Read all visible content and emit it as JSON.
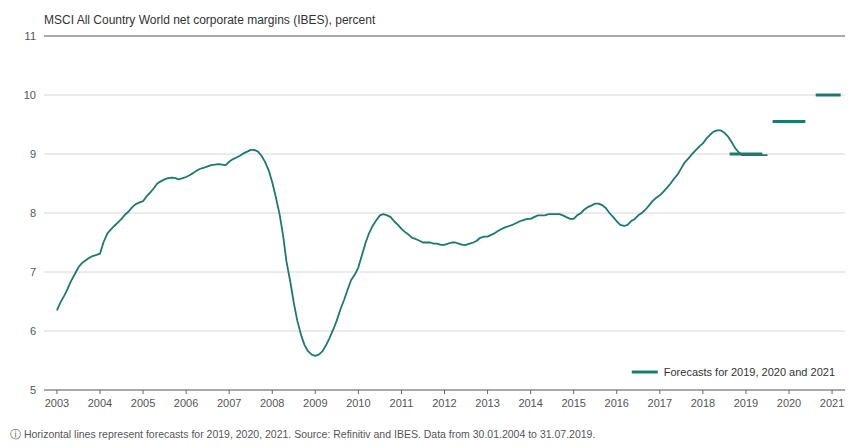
{
  "chart_data": {
    "type": "line",
    "title": "MSCI All Country World net corporate margins (IBES), percent",
    "footnote": "ⓘ  Horizontal lines represent forecasts for 2019, 2020, 2021. Source: Refinitiv and IBES. Data from 30.01.2004 to 31.07.2019.",
    "xlim": [
      2002.7,
      2021.3
    ],
    "xticks": [
      2003,
      2004,
      2005,
      2006,
      2007,
      2008,
      2009,
      2010,
      2011,
      2012,
      2013,
      2014,
      2015,
      2016,
      2017,
      2018,
      2019,
      2020,
      2021
    ],
    "ylim": [
      5,
      11
    ],
    "yticks": [
      5,
      6,
      7,
      8,
      9,
      10,
      11
    ],
    "grid": true,
    "legend": "lower right",
    "series": [
      {
        "type": "line",
        "color": "#1a7a6e",
        "x": [
          2003.0,
          2003.08,
          2003.17,
          2003.25,
          2003.33,
          2003.42,
          2003.5,
          2003.58,
          2003.67,
          2003.75,
          2003.83,
          2003.92,
          2004.0,
          2004.08,
          2004.17,
          2004.25,
          2004.33,
          2004.42,
          2004.5,
          2004.58,
          2004.67,
          2004.75,
          2004.83,
          2004.92,
          2005.0,
          2005.08,
          2005.17,
          2005.25,
          2005.33,
          2005.42,
          2005.5,
          2005.58,
          2005.67,
          2005.75,
          2005.83,
          2005.92,
          2006.0,
          2006.08,
          2006.17,
          2006.25,
          2006.33,
          2006.42,
          2006.5,
          2006.58,
          2006.67,
          2006.75,
          2006.83,
          2006.92,
          2007.0,
          2007.08,
          2007.17,
          2007.25,
          2007.33,
          2007.42,
          2007.5,
          2007.58,
          2007.67,
          2007.75,
          2007.83,
          2007.92,
          2008.0,
          2008.08,
          2008.17,
          2008.25,
          2008.33,
          2008.42,
          2008.5,
          2008.58,
          2008.67,
          2008.75,
          2008.83,
          2008.92,
          2009.0,
          2009.08,
          2009.17,
          2009.25,
          2009.33,
          2009.42,
          2009.5,
          2009.58,
          2009.67,
          2009.75,
          2009.83,
          2009.92,
          2010.0,
          2010.08,
          2010.17,
          2010.25,
          2010.33,
          2010.42,
          2010.5,
          2010.58,
          2010.67,
          2010.75,
          2010.83,
          2010.92,
          2011.0,
          2011.08,
          2011.17,
          2011.25,
          2011.33,
          2011.42,
          2011.5,
          2011.58,
          2011.67,
          2011.75,
          2011.83,
          2011.92,
          2012.0,
          2012.08,
          2012.17,
          2012.25,
          2012.33,
          2012.42,
          2012.5,
          2012.58,
          2012.67,
          2012.75,
          2012.83,
          2012.92,
          2013.0,
          2013.08,
          2013.17,
          2013.25,
          2013.33,
          2013.42,
          2013.5,
          2013.58,
          2013.67,
          2013.75,
          2013.83,
          2013.92,
          2014.0,
          2014.08,
          2014.17,
          2014.25,
          2014.33,
          2014.42,
          2014.5,
          2014.58,
          2014.67,
          2014.75,
          2014.83,
          2014.92,
          2015.0,
          2015.08,
          2015.17,
          2015.25,
          2015.33,
          2015.42,
          2015.5,
          2015.58,
          2015.67,
          2015.75,
          2015.83,
          2015.92,
          2016.0,
          2016.08,
          2016.17,
          2016.25,
          2016.33,
          2016.42,
          2016.5,
          2016.58,
          2016.67,
          2016.75,
          2016.83,
          2016.92,
          2017.0,
          2017.08,
          2017.17,
          2017.25,
          2017.33,
          2017.42,
          2017.5,
          2017.58,
          2017.67,
          2017.75,
          2017.83,
          2017.92,
          2018.0,
          2018.08,
          2018.17,
          2018.25,
          2018.33,
          2018.42,
          2018.5,
          2018.58,
          2018.67,
          2018.75,
          2018.83,
          2018.92,
          2019.0,
          2019.08,
          2019.17,
          2019.25,
          2019.33,
          2019.42,
          2019.5
        ],
        "values": [
          6.35,
          6.48,
          6.6,
          6.72,
          6.85,
          6.97,
          7.08,
          7.15,
          7.2,
          7.24,
          7.27,
          7.29,
          7.31,
          7.5,
          7.65,
          7.72,
          7.78,
          7.84,
          7.9,
          7.97,
          8.03,
          8.1,
          8.15,
          8.18,
          8.2,
          8.28,
          8.35,
          8.42,
          8.5,
          8.54,
          8.57,
          8.59,
          8.6,
          8.59,
          8.57,
          8.59,
          8.61,
          8.64,
          8.68,
          8.72,
          8.75,
          8.77,
          8.79,
          8.81,
          8.82,
          8.83,
          8.82,
          8.81,
          8.87,
          8.91,
          8.94,
          8.97,
          9.01,
          9.04,
          9.07,
          9.07,
          9.04,
          8.97,
          8.87,
          8.72,
          8.52,
          8.28,
          7.98,
          7.63,
          7.18,
          6.83,
          6.48,
          6.18,
          5.93,
          5.76,
          5.66,
          5.6,
          5.58,
          5.6,
          5.66,
          5.76,
          5.88,
          6.03,
          6.18,
          6.36,
          6.53,
          6.7,
          6.86,
          6.96,
          7.08,
          7.28,
          7.5,
          7.66,
          7.78,
          7.88,
          7.96,
          7.98,
          7.96,
          7.93,
          7.86,
          7.8,
          7.73,
          7.68,
          7.63,
          7.58,
          7.56,
          7.53,
          7.5,
          7.5,
          7.5,
          7.48,
          7.48,
          7.46,
          7.46,
          7.48,
          7.5,
          7.5,
          7.48,
          7.46,
          7.46,
          7.48,
          7.5,
          7.53,
          7.58,
          7.6,
          7.6,
          7.63,
          7.66,
          7.7,
          7.73,
          7.76,
          7.78,
          7.8,
          7.83,
          7.86,
          7.88,
          7.9,
          7.9,
          7.93,
          7.96,
          7.96,
          7.96,
          7.98,
          7.98,
          7.98,
          7.98,
          7.96,
          7.93,
          7.9,
          7.9,
          7.96,
          8.0,
          8.06,
          8.1,
          8.13,
          8.16,
          8.16,
          8.13,
          8.08,
          8.0,
          7.93,
          7.86,
          7.8,
          7.78,
          7.8,
          7.86,
          7.9,
          7.96,
          8.0,
          8.06,
          8.13,
          8.2,
          8.26,
          8.3,
          8.36,
          8.43,
          8.5,
          8.58,
          8.66,
          8.76,
          8.86,
          8.93,
          9.0,
          9.06,
          9.13,
          9.18,
          9.26,
          9.33,
          9.38,
          9.4,
          9.4,
          9.36,
          9.3,
          9.2,
          9.1,
          9.03,
          8.98,
          8.98,
          8.98,
          8.98,
          8.98,
          8.98,
          8.98,
          8.98
        ]
      },
      {
        "type": "segments",
        "name": "Forecasts for 2019, 2020 and 2021",
        "color": "#1a7a6e",
        "x_start": [
          2018.62,
          2019.62,
          2020.62
        ],
        "x_end": [
          2019.38,
          2020.38,
          2021.2
        ],
        "values": [
          9.0,
          9.55,
          10.0
        ]
      }
    ]
  }
}
